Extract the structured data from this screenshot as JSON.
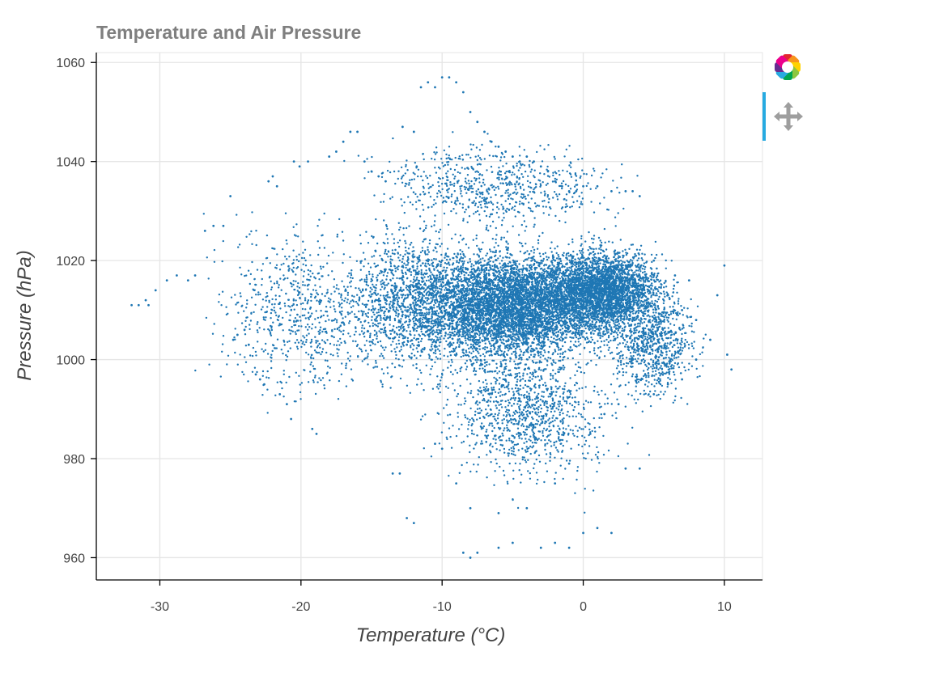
{
  "chart_data": {
    "type": "scatter",
    "title": "Temperature and Air Pressure",
    "xlabel": "Temperature (°C)",
    "ylabel": "Pressure (hPa)",
    "xlim": [
      -34.5,
      12.7
    ],
    "ylim": [
      955.5,
      1062
    ],
    "xticks": [
      -30,
      -20,
      -10,
      0,
      10
    ],
    "yticks": [
      960,
      980,
      1000,
      1020,
      1040,
      1060
    ],
    "grid": true,
    "marker_color": "#1f77b4",
    "series": [
      {
        "points": [
          [
            -32.0,
            1011
          ],
          [
            -31.5,
            1011
          ],
          [
            -31.0,
            1012
          ],
          [
            -30.8,
            1011
          ],
          [
            -30.3,
            1014
          ],
          [
            -29.5,
            1016
          ],
          [
            -28.8,
            1017
          ],
          [
            -28.0,
            1016
          ],
          [
            -27.5,
            1017
          ],
          [
            -26.8,
            1026
          ],
          [
            -26.2,
            1027
          ],
          [
            -25.5,
            1027
          ],
          [
            -25.0,
            1033
          ],
          [
            -24.8,
            1004
          ],
          [
            -24.5,
            1005
          ],
          [
            -24.0,
            1006
          ],
          [
            -23.7,
            1003
          ],
          [
            -23.2,
            997
          ],
          [
            -22.9,
            996
          ],
          [
            -22.6,
            995
          ],
          [
            -22.3,
            1036
          ],
          [
            -22.0,
            1037
          ],
          [
            -21.7,
            1035
          ],
          [
            -21.5,
            993
          ],
          [
            -21.0,
            991
          ],
          [
            -20.7,
            988
          ],
          [
            -20.5,
            1040
          ],
          [
            -20.1,
            1039
          ],
          [
            -19.5,
            1040
          ],
          [
            -19.2,
            986
          ],
          [
            -18.9,
            985
          ],
          [
            -18.0,
            1041
          ],
          [
            -17.5,
            1042
          ],
          [
            -17.0,
            1044
          ],
          [
            -16.5,
            1046
          ],
          [
            -16.0,
            1046
          ],
          [
            -15.5,
            1040
          ],
          [
            -15.0,
            1038
          ],
          [
            -14.5,
            1037
          ],
          [
            -14.0,
            1036
          ],
          [
            -13.5,
            977
          ],
          [
            -13.0,
            977
          ],
          [
            -12.5,
            968
          ],
          [
            -12.0,
            967
          ],
          [
            -12.8,
            1047
          ],
          [
            -12.0,
            1046
          ],
          [
            -11.8,
            1039
          ],
          [
            -11.5,
            1055
          ],
          [
            -11.0,
            1056
          ],
          [
            -10.5,
            1055
          ],
          [
            -10.0,
            1057
          ],
          [
            -9.5,
            1057
          ],
          [
            -9.0,
            1056
          ],
          [
            -8.5,
            1054
          ],
          [
            -8.0,
            1050
          ],
          [
            -7.5,
            1048
          ],
          [
            -7.0,
            1046
          ],
          [
            -6.5,
            1044
          ],
          [
            -6.0,
            1043
          ],
          [
            -5.5,
            1042
          ],
          [
            -5.0,
            1041
          ],
          [
            -4.5,
            1040
          ],
          [
            -4.0,
            1041
          ],
          [
            -3.5,
            1040
          ],
          [
            -3.0,
            1039
          ],
          [
            -2.5,
            1038
          ],
          [
            -2.0,
            1036
          ],
          [
            -1.5,
            1035
          ],
          [
            -1.0,
            1034
          ],
          [
            -0.5,
            1034
          ],
          [
            0.0,
            1035
          ],
          [
            1.0,
            1035
          ],
          [
            2.0,
            1034
          ],
          [
            3.0,
            1034
          ],
          [
            3.5,
            1034
          ],
          [
            4.0,
            1033
          ],
          [
            -8.5,
            961
          ],
          [
            -8.0,
            960
          ],
          [
            -7.5,
            961
          ],
          [
            -6.0,
            962
          ],
          [
            -5.0,
            963
          ],
          [
            -3.0,
            962
          ],
          [
            -2.0,
            963
          ],
          [
            -1.0,
            962
          ],
          [
            0.0,
            965
          ],
          [
            1.0,
            966
          ],
          [
            2.0,
            965
          ],
          [
            3.0,
            978
          ],
          [
            4.0,
            978
          ],
          [
            5.0,
            993
          ],
          [
            6.0,
            995
          ],
          [
            7.0,
            996
          ],
          [
            8.0,
            1000
          ],
          [
            9.0,
            1004
          ],
          [
            9.5,
            1013
          ],
          [
            10.0,
            1019
          ],
          [
            10.5,
            998
          ],
          [
            10.2,
            1001
          ],
          [
            -10.5,
            983
          ],
          [
            -10.0,
            982
          ],
          [
            -9.0,
            975
          ],
          [
            -8.0,
            970
          ],
          [
            -6.0,
            969
          ],
          [
            -4.0,
            970
          ],
          [
            -2.0,
            975
          ],
          [
            -1.0,
            979
          ],
          [
            0.5,
            985
          ],
          [
            1.5,
            989
          ],
          [
            2.5,
            991
          ],
          [
            -15.0,
            1010
          ],
          [
            -14.5,
            1012
          ],
          [
            -14.0,
            1008
          ],
          [
            -13.5,
            1006
          ],
          [
            -13.0,
            1014
          ],
          [
            -12.5,
            1003
          ],
          [
            -12.0,
            1018
          ],
          [
            -11.5,
            1010
          ],
          [
            -11.0,
            1005
          ],
          [
            -10.5,
            1012
          ],
          [
            -10.0,
            1020
          ],
          [
            -9.5,
            1008
          ],
          [
            -9.0,
            1015
          ],
          [
            -8.5,
            1002
          ],
          [
            -8.0,
            1011
          ],
          [
            -7.5,
            1017
          ],
          [
            -7.0,
            1006
          ],
          [
            -6.5,
            1013
          ],
          [
            -6.0,
            1009
          ],
          [
            -5.5,
            1019
          ],
          [
            -5.0,
            1004
          ],
          [
            -4.5,
            1012
          ],
          [
            -4.0,
            1016
          ],
          [
            -3.5,
            1007
          ],
          [
            -3.0,
            1014
          ],
          [
            -2.5,
            1010
          ],
          [
            -2.0,
            1020
          ],
          [
            -1.5,
            1005
          ],
          [
            -1.0,
            1013
          ],
          [
            -0.5,
            1018
          ],
          [
            0.0,
            1009
          ],
          [
            0.5,
            1016
          ],
          [
            1.0,
            1011
          ],
          [
            1.5,
            1021
          ],
          [
            2.0,
            1006
          ],
          [
            2.5,
            1014
          ],
          [
            3.0,
            1019
          ],
          [
            3.5,
            1008
          ],
          [
            4.0,
            1015
          ],
          [
            4.5,
            1012
          ],
          [
            5.0,
            1020
          ],
          [
            5.5,
            1005
          ],
          [
            6.0,
            1013
          ],
          [
            6.5,
            1017
          ],
          [
            7.0,
            1010
          ],
          [
            7.5,
            1016
          ],
          [
            8.0,
            1008
          ]
        ]
      }
    ]
  },
  "toolbar": {
    "logo_icon": "bokeh-logo-icon",
    "pan_icon": "pan-move-icon",
    "active_color": "#26aae1"
  }
}
